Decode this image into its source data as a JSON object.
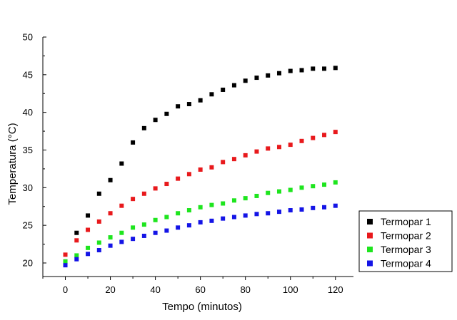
{
  "chart_data": {
    "type": "scatter",
    "xlabel": "Tempo (minutos)",
    "ylabel": "Temperatura (°C)",
    "xlim": [
      -10,
      128
    ],
    "ylim": [
      18.2,
      50
    ],
    "x_ticks": [
      0,
      20,
      40,
      60,
      80,
      100,
      120
    ],
    "y_ticks": [
      20,
      25,
      30,
      35,
      40,
      45,
      50
    ],
    "grid": false,
    "legend_position": "bottom-right",
    "x": [
      0,
      5,
      10,
      15,
      20,
      25,
      30,
      35,
      40,
      45,
      50,
      55,
      60,
      65,
      70,
      75,
      80,
      85,
      90,
      95,
      100,
      105,
      110,
      115,
      120
    ],
    "series": [
      {
        "name": "Termopar 1",
        "color": "#000000",
        "values": [
          20.2,
          24.0,
          26.3,
          29.2,
          31.0,
          33.2,
          36.0,
          37.9,
          39.0,
          39.8,
          40.8,
          41.1,
          41.6,
          42.4,
          43.0,
          43.6,
          44.2,
          44.6,
          44.9,
          45.2,
          45.5,
          45.6,
          45.8,
          45.8,
          45.9
        ]
      },
      {
        "name": "Termopar 2",
        "color": "#e8191c",
        "values": [
          21.1,
          23.0,
          24.4,
          25.5,
          26.6,
          27.6,
          28.5,
          29.2,
          29.9,
          30.5,
          31.2,
          31.8,
          32.4,
          32.7,
          33.4,
          33.8,
          34.3,
          34.8,
          35.2,
          35.4,
          35.7,
          36.2,
          36.6,
          37.0,
          37.4
        ]
      },
      {
        "name": "Termopar 3",
        "color": "#1ee51e",
        "values": [
          20.2,
          21.0,
          22.0,
          22.7,
          23.4,
          24.0,
          24.7,
          25.1,
          25.7,
          26.1,
          26.6,
          27.0,
          27.4,
          27.7,
          27.9,
          28.3,
          28.6,
          28.9,
          29.3,
          29.5,
          29.7,
          30.0,
          30.2,
          30.4,
          30.7
        ]
      },
      {
        "name": "Termopar 4",
        "color": "#1414e6",
        "values": [
          19.7,
          20.5,
          21.2,
          21.7,
          22.3,
          22.8,
          23.2,
          23.6,
          24.0,
          24.3,
          24.7,
          25.0,
          25.4,
          25.6,
          25.9,
          26.1,
          26.3,
          26.5,
          26.6,
          26.8,
          27.0,
          27.1,
          27.3,
          27.4,
          27.6
        ]
      }
    ]
  }
}
